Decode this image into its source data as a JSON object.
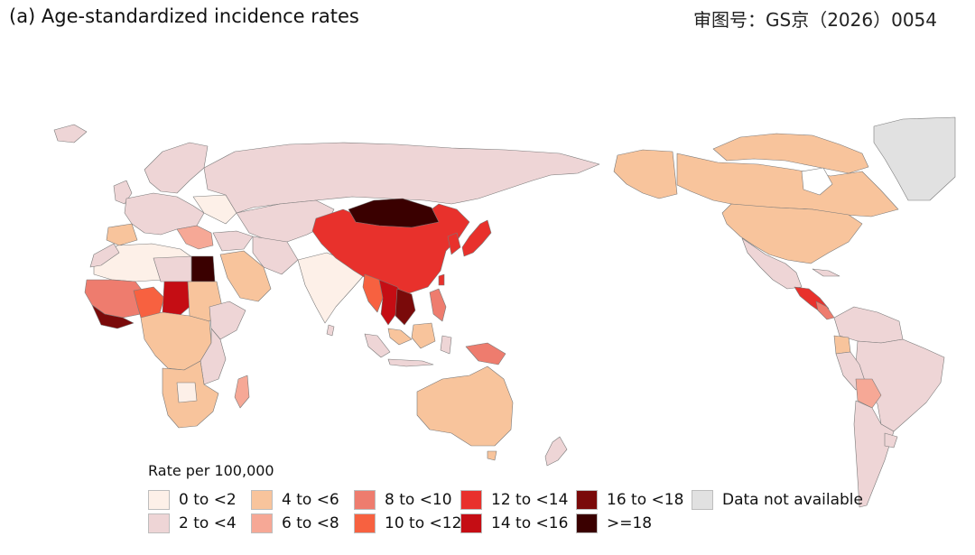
{
  "figure": {
    "panel_title": "(a)  Age-standardized incidence rates",
    "approval_number": "审图号：GS京（2026）0054"
  },
  "legend": {
    "title": "Rate per 100,000",
    "items": [
      {
        "label": "0 to <2",
        "color": "#fdf0e8"
      },
      {
        "label": "2 to <4",
        "color": "#eed5d6"
      },
      {
        "label": "4 to <6",
        "color": "#f8c49c"
      },
      {
        "label": "6 to <8",
        "color": "#f6a896"
      },
      {
        "label": "8 to <10",
        "color": "#ee7c6e"
      },
      {
        "label": "10 to <12",
        "color": "#f76140"
      },
      {
        "label": "12 to <14",
        "color": "#e8312c"
      },
      {
        "label": "14 to <16",
        "color": "#c50d14"
      },
      {
        "label": "16 to <18",
        "color": "#7a0a0a"
      },
      {
        "label": ">=18",
        "color": "#3a0000"
      },
      {
        "label": "Data not available",
        "color": "#e1e1e1"
      }
    ]
  },
  "colors": {
    "ocean": "#ffffff",
    "border": "#7a7a7a"
  }
}
